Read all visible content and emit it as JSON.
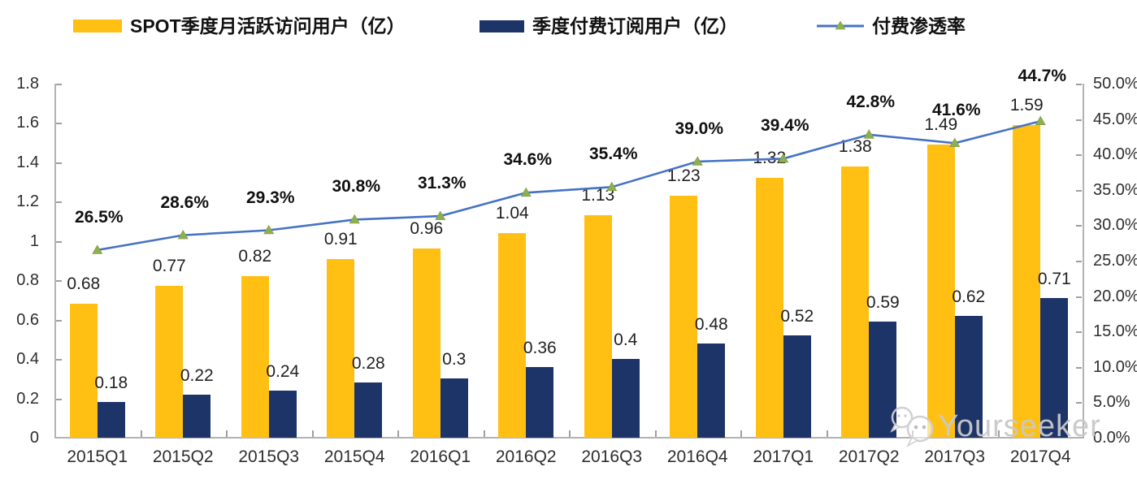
{
  "legend": {
    "items": [
      {
        "label": "SPOT季度月活跃访问用户（亿）",
        "swatch": "bar",
        "color": "#FFC013"
      },
      {
        "label": "季度付费订阅用户（亿）",
        "swatch": "bar",
        "color": "#1C3467"
      },
      {
        "label": "付费渗透率",
        "swatch": "line",
        "color": "#4573C4",
        "marker_color": "#8FAF4F"
      }
    ]
  },
  "watermark": {
    "text": "Yourseeker",
    "icon": "chat-bubbles-icon"
  },
  "colors": {
    "mau_bar": "#FFC013",
    "sub_bar": "#1C3467",
    "line": "#4573C4",
    "marker": "#8FAF4F",
    "axis": "#b3b3b3",
    "text": "#222222",
    "watermark": "#c9c9c9"
  },
  "chart_data": {
    "type": "bar",
    "subtype": "combo-bar-line",
    "categories": [
      "2015Q1",
      "2015Q2",
      "2015Q3",
      "2015Q4",
      "2016Q1",
      "2016Q2",
      "2016Q3",
      "2016Q4",
      "2017Q1",
      "2017Q2",
      "2017Q3",
      "2017Q4"
    ],
    "series": [
      {
        "name": "SPOT季度月活跃访问用户（亿）",
        "type": "bar",
        "axis": "left",
        "color": "#FFC013",
        "values": [
          0.68,
          0.77,
          0.82,
          0.91,
          0.96,
          1.04,
          1.13,
          1.23,
          1.32,
          1.38,
          1.49,
          1.59
        ],
        "labels": [
          "0.68",
          "0.77",
          "0.82",
          "0.91",
          "0.96",
          "1.04",
          "1.13",
          "1.23",
          "1.32",
          "1.38",
          "1.49",
          "1.59"
        ]
      },
      {
        "name": "季度付费订阅用户（亿）",
        "type": "bar",
        "axis": "left",
        "color": "#1C3467",
        "values": [
          0.18,
          0.22,
          0.24,
          0.28,
          0.3,
          0.36,
          0.4,
          0.48,
          0.52,
          0.59,
          0.62,
          0.71
        ],
        "labels": [
          "0.18",
          "0.22",
          "0.24",
          "0.28",
          "0.3",
          "0.36",
          "0.4",
          "0.48",
          "0.52",
          "0.59",
          "0.62",
          "0.71"
        ]
      },
      {
        "name": "付费渗透率",
        "type": "line",
        "axis": "right",
        "color": "#4573C4",
        "marker": "triangle",
        "marker_color": "#8FAF4F",
        "values": [
          26.5,
          28.6,
          29.3,
          30.8,
          31.3,
          34.6,
          35.4,
          39.0,
          39.4,
          42.8,
          41.6,
          44.7
        ],
        "labels": [
          "26.5%",
          "28.6%",
          "29.3%",
          "30.8%",
          "31.3%",
          "34.6%",
          "35.4%",
          "39.0%",
          "39.4%",
          "42.8%",
          "41.6%",
          "44.7%"
        ]
      }
    ],
    "left_axis": {
      "min": 0,
      "max": 1.8,
      "ticks": [
        "0",
        "0.2",
        "0.4",
        "0.6",
        "0.8",
        "1",
        "1.2",
        "1.4",
        "1.6",
        "1.8"
      ]
    },
    "right_axis": {
      "min": 0,
      "max": 50,
      "ticks": [
        "0.0%",
        "5.0%",
        "10.0%",
        "15.0%",
        "20.0%",
        "25.0%",
        "30.0%",
        "35.0%",
        "40.0%",
        "45.0%",
        "50.0%"
      ]
    },
    "grid": false,
    "legend_position": "top"
  }
}
